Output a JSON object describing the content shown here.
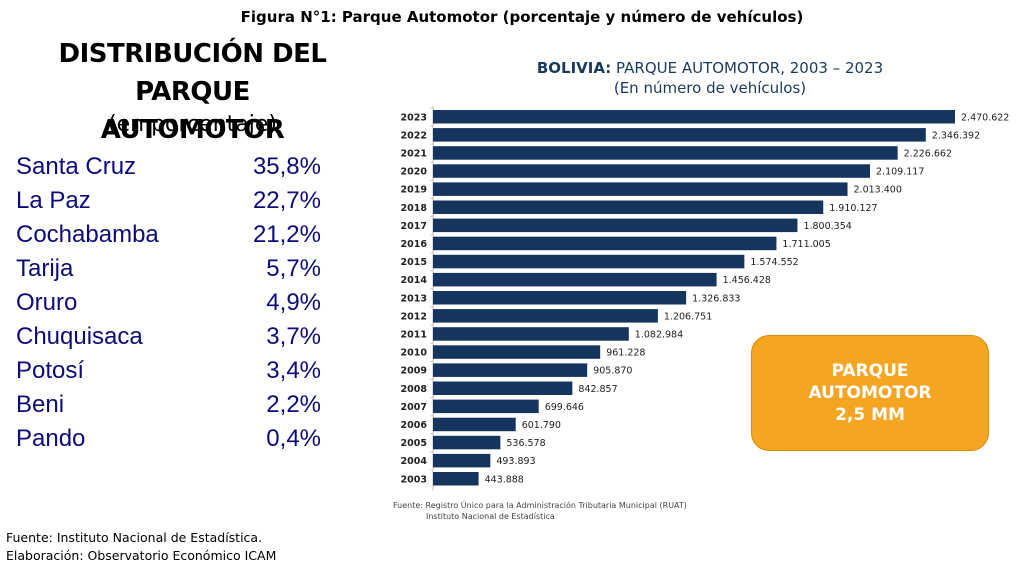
{
  "figure_title": "Figura N°1: Parque Automotor (porcentaje y número de vehículos)",
  "left_panel": {
    "title_line1": "DISTRIBUCIÓN DEL PARQUE",
    "title_line2": "AUTOMOTOR",
    "subtitle": "(en porcentaje)",
    "items": [
      {
        "label": "Santa Cruz",
        "value": "35,8%"
      },
      {
        "label": "La Paz",
        "value": "22,7%"
      },
      {
        "label": "Cochabamba",
        "value": "21,2%"
      },
      {
        "label": "Tarija",
        "value": "5,7%"
      },
      {
        "label": "Oruro",
        "value": "4,9%"
      },
      {
        "label": "Chuquisaca",
        "value": "3,7%"
      },
      {
        "label": "Potosí",
        "value": "3,4%"
      },
      {
        "label": "Beni",
        "value": "2,2%"
      },
      {
        "label": "Pando",
        "value": "0,4%"
      }
    ]
  },
  "callout": {
    "line1": "PARQUE",
    "line2": "AUTOMOTOR",
    "line3": "2,5 MM",
    "color": "#f4a522"
  },
  "chart_source": {
    "line1": "Fuente: Registro Único para la Administración Tributaria Municipal (RUAT)",
    "line2": "Instituto Nacional de Estadística"
  },
  "footer": {
    "source": "Fuente: Instituto Nacional de Estadística.",
    "elaboration": "Elaboración: Observatorio Económico ICAM"
  },
  "chart_data": {
    "type": "bar",
    "orientation": "horizontal",
    "title_bold": "BOLIVIA:",
    "title": "PARQUE AUTOMOTOR, 2003 – 2023",
    "subtitle": "(En número de vehículos)",
    "xlabel": "",
    "ylabel": "",
    "bar_color": "#15355f",
    "grid": false,
    "xlim": [
      250000,
      2470622
    ],
    "categories": [
      "2023",
      "2022",
      "2021",
      "2020",
      "2019",
      "2018",
      "2017",
      "2016",
      "2015",
      "2014",
      "2013",
      "2012",
      "2011",
      "2010",
      "2009",
      "2008",
      "2007",
      "2006",
      "2005",
      "2004",
      "2003"
    ],
    "values": [
      2470622,
      2346392,
      2226662,
      2109117,
      2013400,
      1910127,
      1800354,
      1711005,
      1574552,
      1456428,
      1326833,
      1206751,
      1082984,
      961228,
      905870,
      842857,
      699646,
      601790,
      536578,
      493893,
      443888
    ],
    "value_labels": [
      "2.470.622",
      "2.346.392",
      "2.226.662",
      "2.109.117",
      "2.013.400",
      "1.910.127",
      "1.800.354",
      "1.711.005",
      "1.574.552",
      "1.456.428",
      "1.326.833",
      "1.206.751",
      "1.082.984",
      "961.228",
      "905.870",
      "842.857",
      "699.646",
      "601.790",
      "536.578",
      "493.893",
      "443.888"
    ]
  }
}
